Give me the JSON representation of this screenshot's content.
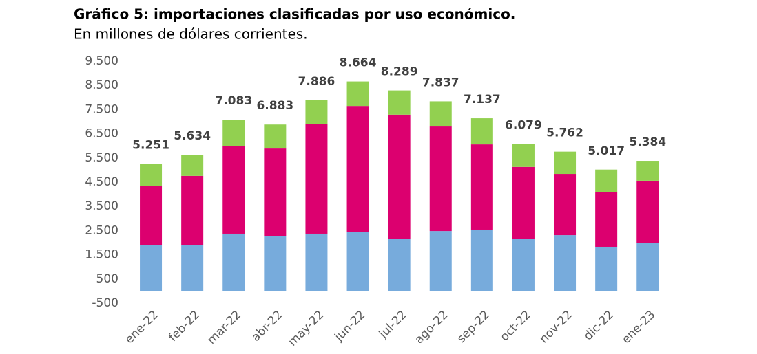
{
  "chart_data": {
    "type": "stacked-bar",
    "title": "Gráfico 5: importaciones clasificadas por uso económico.",
    "subtitle": "En millones de dólares corrientes.",
    "categories": [
      "ene-22",
      "feb-22",
      "mar-22",
      "abr-22",
      "may-22",
      "jun-22",
      "jul-22",
      "ago-22",
      "sep-22",
      "oct-22",
      "nov-22",
      "dic-22",
      "ene-23"
    ],
    "series": [
      {
        "color": "#77abdc",
        "values": [
          1900,
          1890,
          2370,
          2280,
          2370,
          2430,
          2170,
          2480,
          2540,
          2170,
          2310,
          1830,
          2000
        ]
      },
      {
        "color": "#dc006f",
        "values": [
          2430,
          2870,
          3610,
          3610,
          4520,
          5220,
          5120,
          4320,
          3520,
          2960,
          2530,
          2270,
          2560
        ]
      },
      {
        "color": "#92d050",
        "values": [
          920,
          870,
          1100,
          990,
          1000,
          1010,
          1000,
          1040,
          1080,
          950,
          920,
          920,
          820
        ]
      }
    ],
    "totals": {
      "values": [
        5251,
        5634,
        7083,
        6883,
        7886,
        8664,
        8289,
        7837,
        7137,
        6079,
        5762,
        5017,
        5384
      ],
      "value_labels": [
        "5.251",
        "5.634",
        "7.083",
        "6.883",
        "7.886",
        "8.664",
        "8.289",
        "7.837",
        "7.137",
        "6.079",
        "5.762",
        "5.017",
        "5.384"
      ]
    },
    "ylim": [
      -500,
      9500
    ],
    "yticks": [
      -500,
      500,
      {
        "value": 1500,
        "label": "1.500"
      },
      {
        "value": 2500,
        "label": "2.500"
      },
      {
        "value": 3500,
        "label": "3.500"
      },
      {
        "value": 4500,
        "label": "4.500"
      },
      {
        "value": 5500,
        "label": "5.500"
      },
      {
        "value": 6500,
        "label": "6.500"
      },
      {
        "value": 7500,
        "label": "7.500"
      },
      {
        "value": 8500,
        "label": "8.500"
      },
      {
        "value": 9500,
        "label": "9.500"
      }
    ],
    "grid": false
  }
}
